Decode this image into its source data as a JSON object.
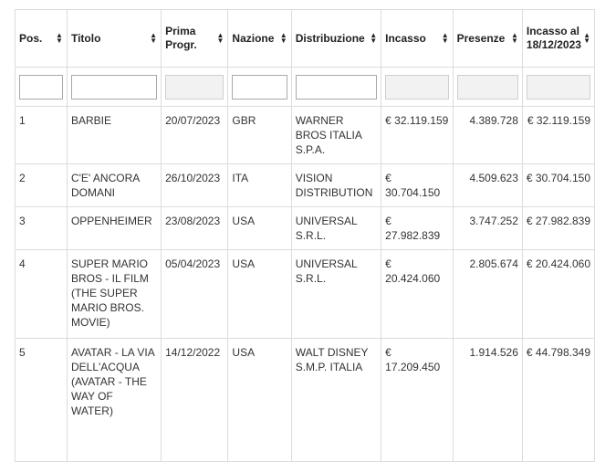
{
  "headers": {
    "pos": "Pos.",
    "titolo": "Titolo",
    "prima_1": "Prima",
    "prima_2": "Progr.",
    "nazione": "Nazione",
    "distribuzione": "Distribuzione",
    "incasso": "Incasso",
    "presenze": "Presenze",
    "incasso_al_1": "Incasso al",
    "incasso_al_2": "18/12/2023"
  },
  "rows": [
    {
      "pos": "1",
      "titolo": "BARBIE",
      "prima": "20/07/2023",
      "nazione": "GBR",
      "distribuzione": "WARNER BROS ITALIA S.P.A.",
      "incasso": "€ 32.119.159",
      "presenze": "4.389.728",
      "incasso_al": "€ 32.119.159"
    },
    {
      "pos": "2",
      "titolo": "C'E' ANCORA DOMANI",
      "prima": "26/10/2023",
      "nazione": "ITA",
      "distribuzione": "VISION DISTRIBUTION",
      "incasso": "€ 30.704.150",
      "presenze": "4.509.623",
      "incasso_al": "€ 30.704.150"
    },
    {
      "pos": "3",
      "titolo": "OPPENHEIMER",
      "prima": "23/08/2023",
      "nazione": "USA",
      "distribuzione": "UNIVERSAL S.R.L.",
      "incasso": "€ 27.982.839",
      "presenze": "3.747.252",
      "incasso_al": "€ 27.982.839"
    },
    {
      "pos": "4",
      "titolo": "SUPER MARIO BROS - IL FILM (THE SUPER MARIO BROS. MOVIE)",
      "prima": "05/04/2023",
      "nazione": "USA",
      "distribuzione": "UNIVERSAL S.R.L.",
      "incasso": "€ 20.424.060",
      "presenze": "2.805.674",
      "incasso_al": "€ 20.424.060"
    },
    {
      "pos": "5",
      "titolo": "AVATAR - LA VIA DELL'ACQUA (AVATAR - THE WAY OF WATER)",
      "prima": "14/12/2022",
      "nazione": "USA",
      "distribuzione": "WALT DISNEY S.M.P. ITALIA",
      "incasso": "€ 17.209.450",
      "presenze": "1.914.526",
      "incasso_al": "€ 44.798.349"
    }
  ],
  "icons": {
    "sort": "sort-updown-icon"
  }
}
